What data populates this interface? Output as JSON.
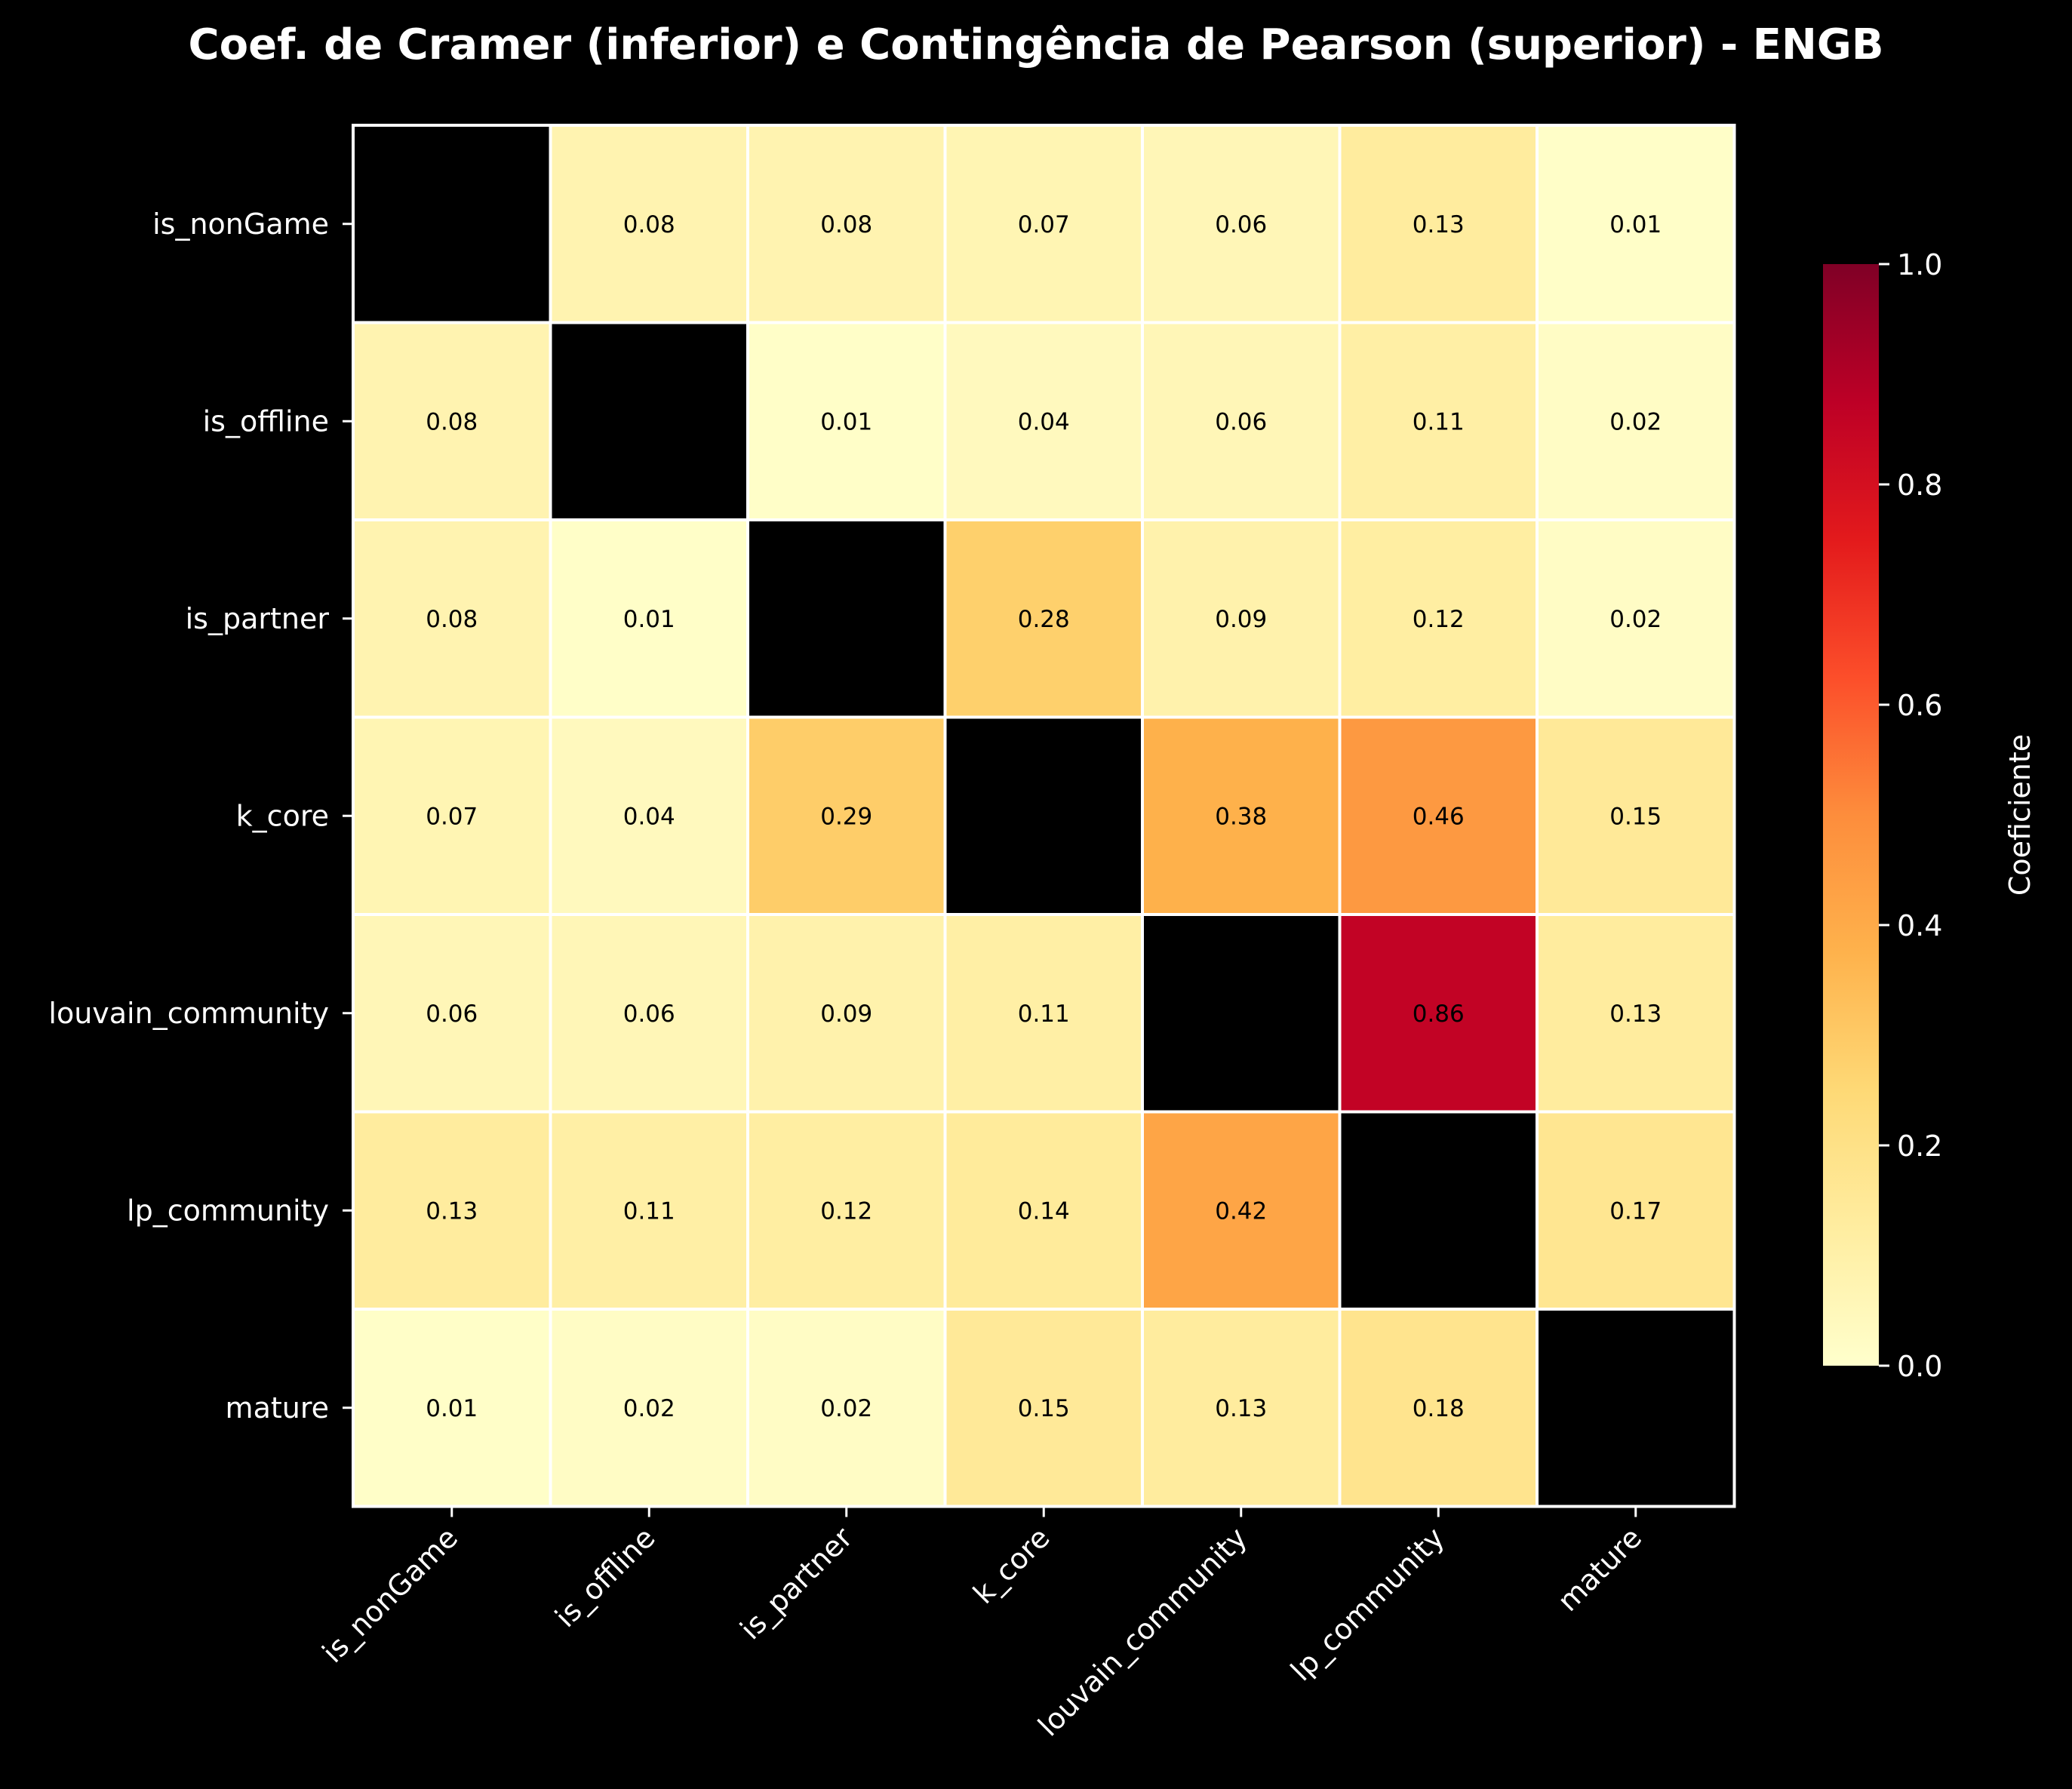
{
  "chart_data": {
    "type": "heatmap",
    "title": "Coef. de Cramer (inferior) e Contingência de Pearson (superior) - ENGB",
    "xlabel": "",
    "ylabel": "",
    "rows": [
      "is_nonGame",
      "is_offline",
      "is_partner",
      "k_core",
      "louvain_community",
      "lp_community",
      "mature"
    ],
    "columns": [
      "is_nonGame",
      "is_offline",
      "is_partner",
      "k_core",
      "louvain_community",
      "lp_community",
      "mature"
    ],
    "values": [
      [
        null,
        0.08,
        0.08,
        0.07,
        0.06,
        0.13,
        0.01
      ],
      [
        0.08,
        null,
        0.01,
        0.04,
        0.06,
        0.11,
        0.02
      ],
      [
        0.08,
        0.01,
        null,
        0.28,
        0.09,
        0.12,
        0.02
      ],
      [
        0.07,
        0.04,
        0.29,
        null,
        0.38,
        0.46,
        0.15
      ],
      [
        0.06,
        0.06,
        0.09,
        0.11,
        null,
        0.86,
        0.13
      ],
      [
        0.13,
        0.11,
        0.12,
        0.14,
        0.42,
        null,
        0.17
      ],
      [
        0.01,
        0.02,
        0.02,
        0.15,
        0.13,
        0.18,
        null
      ]
    ],
    "value_format": "0.00",
    "colormap": "YlOrRd",
    "vmin": 0,
    "vmax": 1,
    "colorbar": {
      "label": "Coeficiente",
      "ticks": [
        0,
        0.2,
        0.4,
        0.6,
        0.8,
        1
      ],
      "tick_labels": [
        "0.0",
        "0.2",
        "0.4",
        "0.6",
        "0.8",
        "1.0"
      ]
    },
    "legend": "none",
    "grid": false
  },
  "colors": {
    "background": "#000000",
    "text": "#ffffff",
    "cell_border": "#ffffff",
    "diagonal": "#000000",
    "annotation": "#000000"
  }
}
